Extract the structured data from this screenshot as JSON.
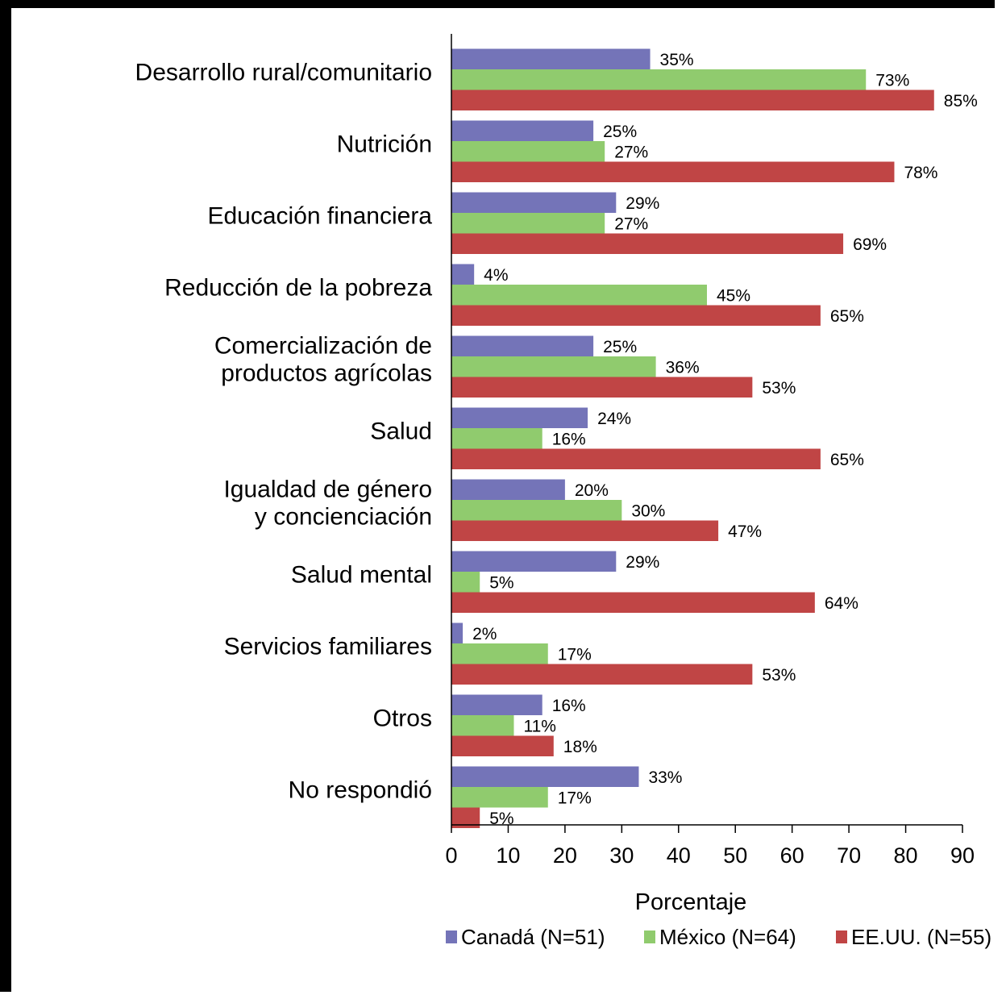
{
  "chart_data": {
    "type": "bar",
    "orientation": "horizontal",
    "categories": [
      [
        "Desarrollo rural/comunitario"
      ],
      [
        "Nutrición"
      ],
      [
        "Educación financiera"
      ],
      [
        "Reducción de la pobreza"
      ],
      [
        "Comercialización de",
        "productos agrícolas"
      ],
      [
        "Salud"
      ],
      [
        "Igualdad de género",
        "y concienciación"
      ],
      [
        "Salud mental"
      ],
      [
        "Servicios familiares"
      ],
      [
        "Otros"
      ],
      [
        "No respondió"
      ]
    ],
    "series": [
      {
        "name": "Canadá (N=51)",
        "color": "#7474b8",
        "values": [
          35,
          25,
          29,
          4,
          25,
          24,
          20,
          29,
          2,
          16,
          33
        ]
      },
      {
        "name": "México (N=64)",
        "color": "#90cb6e",
        "values": [
          73,
          27,
          27,
          45,
          36,
          16,
          30,
          5,
          17,
          11,
          17
        ]
      },
      {
        "name": "EE.UU. (N=55)",
        "color": "#c04545",
        "values": [
          85,
          78,
          69,
          65,
          53,
          65,
          47,
          64,
          53,
          18,
          5
        ]
      }
    ],
    "value_suffix": "%",
    "xlabel": "Porcentaje",
    "xlim": [
      0,
      90
    ],
    "xticks": [
      0,
      10,
      20,
      30,
      40,
      50,
      60,
      70,
      80,
      90
    ],
    "grid": false,
    "legend_position": "bottom"
  }
}
